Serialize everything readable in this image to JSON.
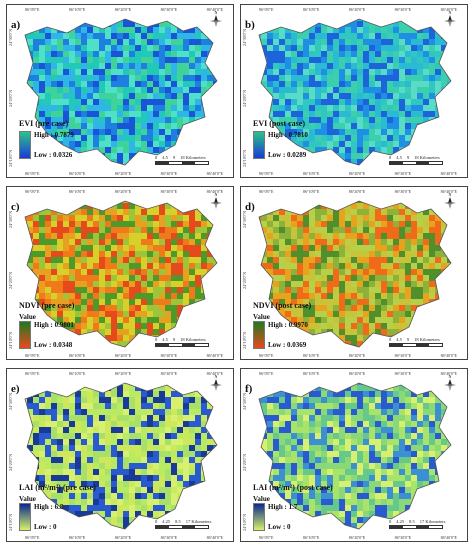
{
  "axis_ticks": {
    "top": [
      "86°0'0\"E",
      "86°10'0\"E",
      "86°20'0\"E",
      "86°30'0\"E",
      "86°40'0\"E"
    ],
    "bottom": [
      "86°0'0\"E",
      "86°10'0\"E",
      "86°20'0\"E",
      "86°30'0\"E",
      "86°40'0\"E"
    ],
    "left": [
      "24°30'0\"N",
      "24°20'0\"N",
      "24°10'0\"N"
    ]
  },
  "north_label": "N",
  "panels": [
    {
      "label": "a)",
      "legend_title": "EVI (pre case)",
      "value_label": "",
      "high": "High : 0.7879",
      "low": "Low : 0.0326",
      "scale": [
        "0",
        "4.5",
        "9",
        "18 Kilometers"
      ],
      "colors": {
        "high": "#2bc48a",
        "low": "#1a3bd6"
      }
    },
    {
      "label": "b)",
      "legend_title": "EVI (post case)",
      "value_label": "",
      "high": "High : 0.7810",
      "low": "Low : 0.0289",
      "scale": [
        "0",
        "4.5",
        "9",
        "18 Kilometers"
      ],
      "colors": {
        "high": "#2bc48a",
        "low": "#1a3bd6"
      }
    },
    {
      "label": "c)",
      "legend_title": "NDVI (pre case)",
      "value_label": "Value",
      "high": "High : 0.9801",
      "low": "Low : 0.0348",
      "scale": [
        "0",
        "4.5",
        "9",
        "18 Kilometers"
      ],
      "colors": {
        "high": "#1f7a1f",
        "low": "#e8491d"
      }
    },
    {
      "label": "d)",
      "legend_title": "NDVI (post case)",
      "value_label": "Value",
      "high": "High : 0.9970",
      "low": "Low : 0.0369",
      "scale": [
        "0",
        "4.5",
        "9",
        "18 Kilometers"
      ],
      "colors": {
        "high": "#1f7a1f",
        "low": "#e8491d"
      }
    },
    {
      "label": "e)",
      "legend_title": "LAI (m²/m²) (pre case)",
      "value_label": "Value",
      "high": "High : 6.8",
      "low": "Low : 0",
      "scale": [
        "0",
        "4.25",
        "8.5",
        "17 Kilometers"
      ],
      "colors": {
        "high": "#0b2a8f",
        "low": "#d7f26a"
      }
    },
    {
      "label": "f)",
      "legend_title": "LAI (m²/m²) (post case)",
      "value_label": "Value",
      "high": "High : 1.7",
      "low": "Low : 0",
      "scale": [
        "0",
        "4.25",
        "8.5",
        "17 Kilometers"
      ],
      "colors": {
        "high": "#0b2a8f",
        "low": "#d7f26a"
      }
    }
  ]
}
